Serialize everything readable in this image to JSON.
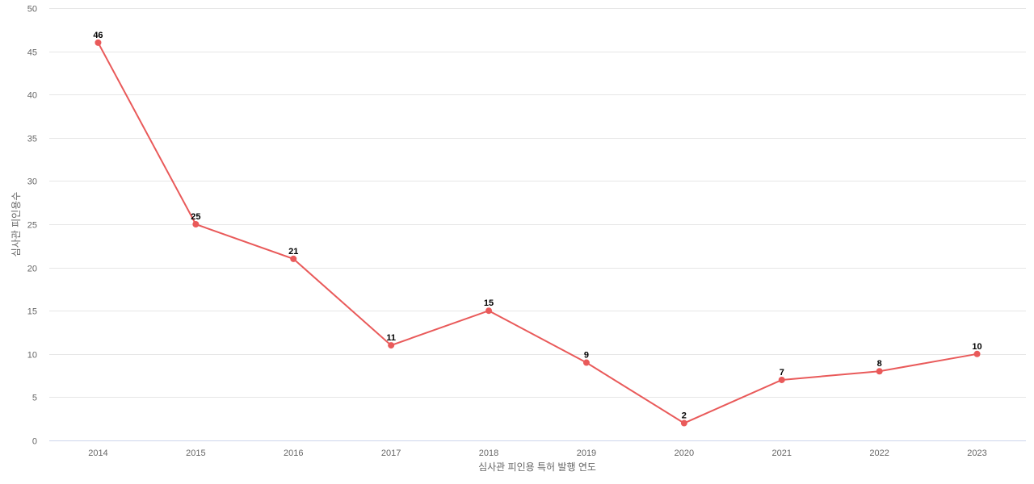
{
  "chart_data": {
    "type": "line",
    "title": "",
    "xlabel": "심사관 피인용 특허 발행 연도",
    "ylabel": "심사관 피인용수",
    "categories": [
      "2014",
      "2015",
      "2016",
      "2017",
      "2018",
      "2019",
      "2020",
      "2021",
      "2022",
      "2023"
    ],
    "series": [
      {
        "name": "심사관 피인용수",
        "values": [
          46,
          25,
          21,
          11,
          15,
          9,
          2,
          7,
          8,
          10
        ],
        "color": "#e95a5a"
      }
    ],
    "ylim": [
      0,
      50
    ],
    "yticks": [
      0,
      5,
      10,
      15,
      20,
      25,
      30,
      35,
      40,
      45,
      50
    ],
    "grid": true,
    "legend": "none",
    "data_labels": true
  }
}
